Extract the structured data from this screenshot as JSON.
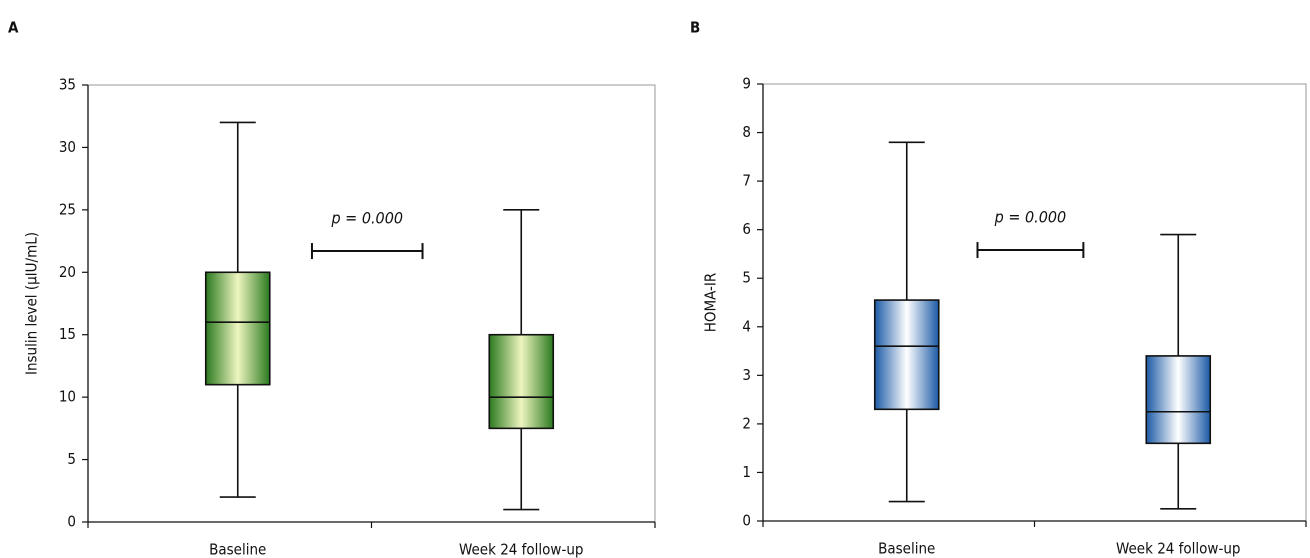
{
  "chart_data": [
    {
      "type": "box",
      "panel_label": "A",
      "ylabel": "Insulin level (μIU/mL)",
      "categories": [
        "Baseline",
        "Week 24 follow-up"
      ],
      "boxes": [
        {
          "min": 2,
          "q1": 11,
          "median": 16,
          "q3": 20,
          "max": 32
        },
        {
          "min": 1,
          "q1": 7.5,
          "median": 10,
          "q3": 15,
          "max": 25
        }
      ],
      "color": "#2b7a1f",
      "highlight": "#eef5c0",
      "annotation": "p = 0.000",
      "ylim": [
        0,
        35
      ],
      "yticks": [
        0,
        5,
        10,
        15,
        20,
        25,
        30,
        35
      ]
    },
    {
      "type": "box",
      "panel_label": "B",
      "ylabel": "HOMA-IR",
      "categories": [
        "Baseline",
        "Week 24 follow-up"
      ],
      "boxes": [
        {
          "min": 0.4,
          "q1": 2.3,
          "median": 3.6,
          "q3": 4.55,
          "max": 7.8
        },
        {
          "min": 0.25,
          "q1": 1.6,
          "median": 2.25,
          "q3": 3.4,
          "max": 5.9
        }
      ],
      "color": "#1c5aa6",
      "highlight": "#ffffff",
      "annotation": "p = 0.000",
      "ylim": [
        0,
        9
      ],
      "yticks": [
        0,
        1,
        2,
        3,
        4,
        5,
        6,
        7,
        8,
        9
      ]
    }
  ]
}
